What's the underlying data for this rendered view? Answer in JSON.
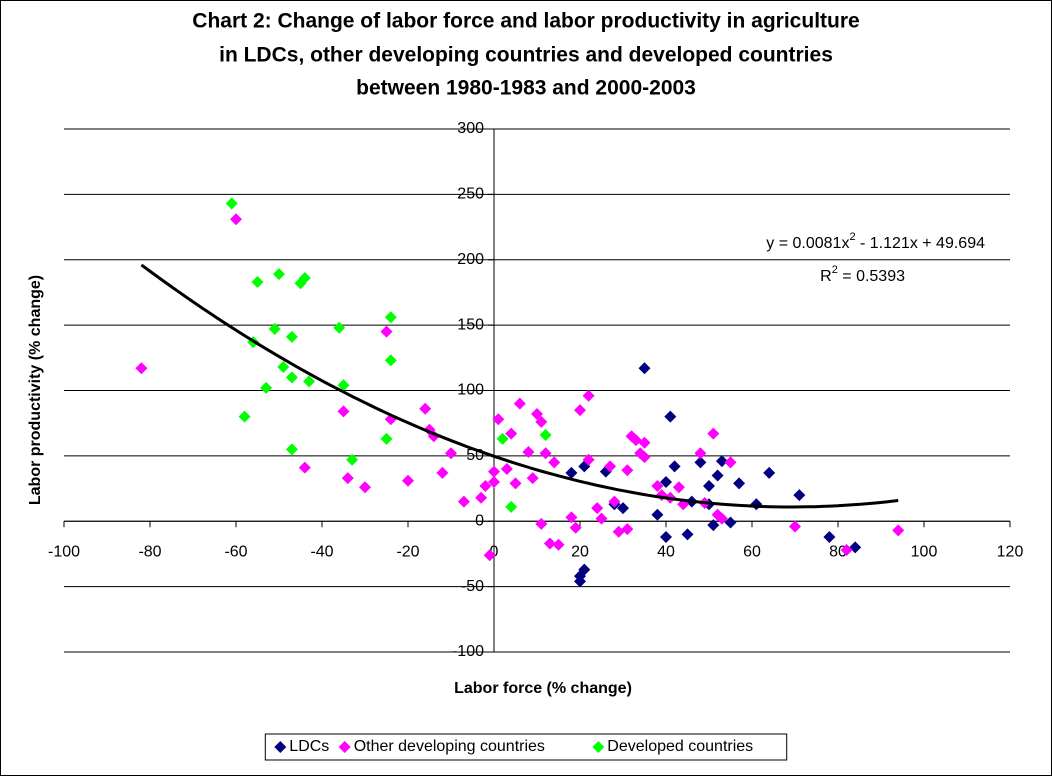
{
  "chart_data": {
    "type": "scatter",
    "title": [
      "Chart 2: Change of labor force and labor productivity in agriculture",
      "in LDCs, other developing countries and developed countries",
      "between 1980-1983 and 2000-2003"
    ],
    "xlabel": "Labor force (% change)",
    "ylabel": "Labor productivity (% change)",
    "xlim": [
      -100,
      120
    ],
    "xticks": [
      -100,
      -80,
      -60,
      -40,
      -20,
      0,
      20,
      40,
      60,
      80,
      100,
      120
    ],
    "ylim": [
      -100,
      300
    ],
    "yticks": [
      -100,
      -50,
      0,
      50,
      100,
      150,
      200,
      250,
      300
    ],
    "grid": true,
    "legend": "bottom",
    "series": [
      {
        "name": "LDCs",
        "color": "#000080",
        "x": [
          35,
          41,
          42,
          40,
          21,
          18,
          26,
          28,
          30,
          38,
          40,
          45,
          46,
          48,
          50,
          50,
          52,
          53,
          51,
          55,
          57,
          61,
          64,
          71,
          78,
          84,
          20,
          20,
          21
        ],
        "values": [
          117,
          80,
          42,
          30,
          42,
          37,
          38,
          13,
          10,
          5,
          -12,
          -10,
          15,
          45,
          13,
          27,
          35,
          46,
          -3,
          -1,
          29,
          13,
          37,
          20,
          -12,
          -20,
          -42,
          -46,
          -37
        ]
      },
      {
        "name": "Other developing countries",
        "color": "#ff00ff",
        "x": [
          -82,
          -60,
          -35,
          -34,
          -30,
          -44,
          -25,
          -24,
          -20,
          -16,
          -15,
          -14,
          -12,
          -10,
          -7,
          -3,
          -2,
          -1,
          0,
          0,
          1,
          3,
          4,
          5,
          6,
          8,
          9,
          10,
          11,
          11,
          12,
          13,
          14,
          15,
          18,
          19,
          20,
          22,
          22,
          24,
          25,
          27,
          28,
          29,
          31,
          31,
          32,
          33,
          34,
          35,
          35,
          38,
          39,
          41,
          43,
          44,
          48,
          49,
          51,
          52,
          53,
          55,
          70,
          82,
          94
        ],
        "values": [
          117,
          231,
          84,
          33,
          26,
          41,
          145,
          78,
          31,
          86,
          70,
          65,
          37,
          52,
          15,
          18,
          27,
          -26,
          30,
          38,
          78,
          40,
          67,
          29,
          90,
          53,
          33,
          82,
          76,
          -2,
          52,
          -17,
          45,
          -18,
          3,
          -5,
          85,
          96,
          47,
          10,
          2,
          42,
          15,
          -8,
          -6,
          39,
          65,
          62,
          52,
          60,
          49,
          27,
          20,
          18,
          26,
          13,
          52,
          14,
          67,
          5,
          2,
          45,
          -4,
          -22,
          -7
        ]
      },
      {
        "name": "Developed countries",
        "color": "#00ff00",
        "x": [
          -61,
          -55,
          -50,
          -45,
          -44,
          -24,
          -24,
          -36,
          -51,
          -47,
          -56,
          -49,
          -47,
          -43,
          -53,
          -35,
          -58,
          -47,
          -33,
          -25,
          2,
          4,
          12
        ],
        "values": [
          243,
          183,
          189,
          182,
          186,
          156,
          123,
          148,
          147,
          141,
          137,
          118,
          110,
          107,
          102,
          104,
          80,
          55,
          47,
          63,
          63,
          11,
          66
        ]
      }
    ],
    "trendline": {
      "coefficients": [
        0.0081,
        -1.121,
        49.694
      ],
      "color": "#000000",
      "equation": [
        "y = 0.0081x",
        "2",
        " - 1.121x + 49.694"
      ],
      "r_squared": [
        "R",
        "2",
        " = 0.5393"
      ]
    }
  }
}
